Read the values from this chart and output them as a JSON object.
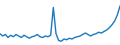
{
  "y_values": [
    55,
    52,
    54,
    50,
    53,
    51,
    54,
    52,
    50,
    53,
    51,
    49,
    51,
    52,
    54,
    51,
    50,
    52,
    51,
    53,
    90,
    55,
    46,
    45,
    48,
    47,
    49,
    48,
    50,
    51,
    52,
    54,
    56,
    54,
    52,
    54,
    55,
    57,
    56,
    58,
    60,
    63,
    67,
    72,
    80,
    92
  ],
  "line_color": "#1a7abf",
  "line_width": 1.0,
  "background_color": "#ffffff",
  "ylim_min": 40,
  "ylim_max": 100
}
